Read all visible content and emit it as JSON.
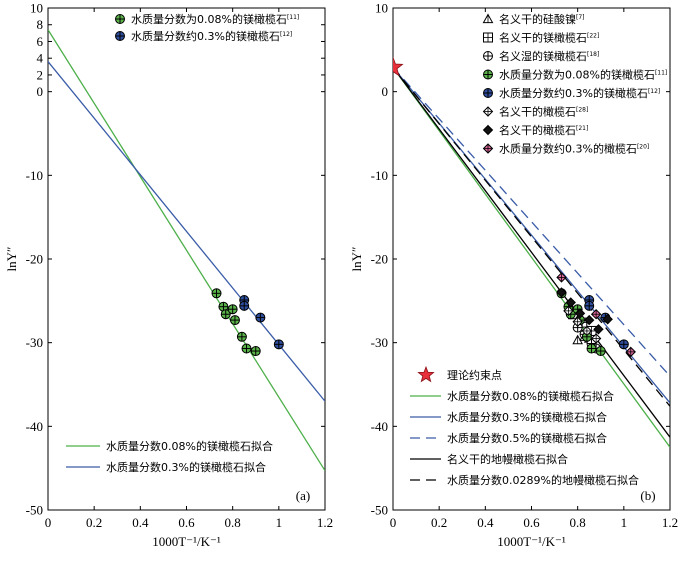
{
  "chart_data": [
    {
      "type": "line",
      "panel_label": "(a)",
      "xlabel": "1000T⁻¹/K⁻¹",
      "ylabel": "lnY″",
      "xlim": [
        0,
        1.2
      ],
      "ylim": [
        -50,
        10
      ],
      "x_ticks": [
        0,
        0.2,
        0.4,
        0.6,
        0.8,
        1,
        1.2
      ],
      "x_tick_labels": [
        "0",
        "0.2",
        "0.4",
        "0.6",
        "0.8",
        "1",
        "1.2"
      ],
      "y_ticks": [
        -50,
        -40,
        -30,
        -20,
        -10,
        0,
        2,
        4,
        6,
        8,
        10
      ],
      "y_tick_labels": [
        "-50",
        "-40",
        "-30",
        "-20",
        "-10",
        "0",
        "2",
        "4",
        "6",
        "8",
        "10"
      ],
      "series": [
        {
          "name": "水质量分数为0.08%的镁橄榄石",
          "ref": "[11]",
          "kind": "scatter",
          "marker": "circle-plus",
          "color": "#5ab44a",
          "x": [
            0.73,
            0.76,
            0.77,
            0.8,
            0.81,
            0.84,
            0.86,
            0.9
          ],
          "y": [
            -24.1,
            -25.7,
            -26.6,
            -26.0,
            -27.3,
            -29.3,
            -30.7,
            -31.0
          ]
        },
        {
          "name": "水质量分数约0.3%的镁橄榄石",
          "ref": "[12]",
          "kind": "scatter",
          "marker": "circle-plus",
          "color": "#2f4f9e",
          "x": [
            0.85,
            0.85,
            0.92,
            1.0
          ],
          "y": [
            -24.9,
            -25.6,
            -27.0,
            -30.2
          ]
        },
        {
          "name": "水质量分数0.08%的镁橄榄石拟合",
          "kind": "line",
          "color": "#4db04a",
          "dash": "solid",
          "x": [
            0,
            1.2
          ],
          "y": [
            7.4,
            -45.3
          ]
        },
        {
          "name": "水质量分数0.3%的镁橄榄石拟合",
          "kind": "line",
          "color": "#3a5ca8",
          "dash": "solid",
          "x": [
            0,
            1.2
          ],
          "y": [
            3.6,
            -37.0
          ]
        }
      ]
    },
    {
      "type": "line",
      "panel_label": "(b)",
      "xlabel": "1000T⁻¹/K⁻¹",
      "ylabel": "lnY″",
      "xlim": [
        0,
        1.2
      ],
      "ylim": [
        -50,
        10
      ],
      "x_ticks": [
        0,
        0.2,
        0.4,
        0.6,
        0.8,
        1,
        1.2
      ],
      "x_tick_labels": [
        "0",
        "0.2",
        "0.4",
        "0.6",
        "0.8",
        "1",
        "1.2"
      ],
      "y_ticks": [
        -50,
        -40,
        -30,
        -20,
        -10,
        0,
        10
      ],
      "y_tick_labels": [
        "-50",
        "-40",
        "-30",
        "-20",
        "-10",
        "0",
        "10"
      ],
      "series": [
        {
          "name": "名义干的硅酸镍",
          "ref": "[7]",
          "kind": "scatter",
          "marker": "triangle",
          "color": "#ffffff",
          "x": [
            0.8,
            0.83,
            0.85
          ],
          "y": [
            -29.7,
            -29.3,
            -29.5
          ]
        },
        {
          "name": "名义干的镁橄榄石",
          "ref": "[22]",
          "kind": "scatter",
          "marker": "square-grid",
          "color": "#ffffff",
          "x": [
            0.78,
            0.82,
            0.86
          ],
          "y": [
            -26.6,
            -27.6,
            -28.6
          ]
        },
        {
          "name": "名义湿的镁橄榄石",
          "ref": "[18]",
          "kind": "scatter",
          "marker": "circle-plus",
          "color": "#ffffff",
          "x": [
            0.8,
            0.83,
            0.86,
            0.88
          ],
          "y": [
            -28.2,
            -29.0,
            -30.1,
            -30.7
          ]
        },
        {
          "name": "水质量分数为0.08%的镁橄榄石",
          "ref": "[11]",
          "kind": "scatter",
          "marker": "circle-plus",
          "color": "#5ab44a",
          "x": [
            0.73,
            0.76,
            0.77,
            0.8,
            0.81,
            0.84,
            0.86,
            0.9
          ],
          "y": [
            -24.1,
            -25.7,
            -26.6,
            -26.0,
            -27.3,
            -29.3,
            -30.7,
            -31.0
          ]
        },
        {
          "name": "水质量分数约0.3%的镁橄榄石",
          "ref": "[12]",
          "kind": "scatter",
          "marker": "circle-plus",
          "color": "#2f4f9e",
          "x": [
            0.85,
            0.85,
            0.92,
            1.0
          ],
          "y": [
            -24.9,
            -25.6,
            -27.0,
            -30.2
          ]
        },
        {
          "name": "名义干的橄榄石",
          "ref": "[28]",
          "kind": "scatter",
          "marker": "diamond-plus",
          "color": "#ffffff",
          "x": [
            0.76,
            0.8,
            0.84,
            0.88
          ],
          "y": [
            -26.2,
            -27.5,
            -28.6,
            -29.5
          ]
        },
        {
          "name": "名义干的橄榄石",
          "ref": "[21]",
          "kind": "scatter",
          "marker": "diamond",
          "color": "#111111",
          "x": [
            0.73,
            0.77,
            0.81,
            0.85,
            0.89,
            0.93
          ],
          "y": [
            -24.0,
            -25.2,
            -26.5,
            -27.3,
            -28.4,
            -27.2
          ]
        },
        {
          "name": "水质量分数约0.3%的橄榄石",
          "ref": "[20]",
          "kind": "scatter",
          "marker": "diamond-plus",
          "color": "#e06a9e",
          "x": [
            0.73,
            0.88,
            1.03
          ],
          "y": [
            -22.2,
            -26.6,
            -31.1
          ]
        },
        {
          "name": "理论约束点",
          "kind": "scatter",
          "marker": "star",
          "color": "#e8303a",
          "x": [
            0
          ],
          "y": [
            2.9
          ]
        },
        {
          "name": "水质量分数0.08%的镁橄榄石拟合",
          "kind": "line",
          "color": "#4db04a",
          "dash": "solid",
          "x": [
            0,
            1.2
          ],
          "y": [
            2.9,
            -42.5
          ]
        },
        {
          "name": "水质量分数0.3%的镁橄榄石拟合",
          "kind": "line",
          "color": "#3a5ca8",
          "dash": "solid",
          "x": [
            0,
            1.2
          ],
          "y": [
            2.9,
            -37.2
          ]
        },
        {
          "name": "水质量分数0.5%的镁橄榄石拟合",
          "kind": "line",
          "color": "#3a5ca8",
          "dash": "dashed",
          "x": [
            0,
            1.2
          ],
          "y": [
            2.9,
            -34.0
          ]
        },
        {
          "name": "名义干的地幔橄榄石拟合",
          "kind": "line",
          "color": "#000000",
          "dash": "solid",
          "x": [
            0,
            1.2
          ],
          "y": [
            2.9,
            -41.3
          ]
        },
        {
          "name": "水质量分数0.0289%的地幔橄榄石拟合",
          "kind": "line",
          "color": "#000000",
          "dash": "dashed",
          "x": [
            0,
            1.2
          ],
          "y": [
            2.9,
            -37.6
          ]
        }
      ]
    }
  ]
}
